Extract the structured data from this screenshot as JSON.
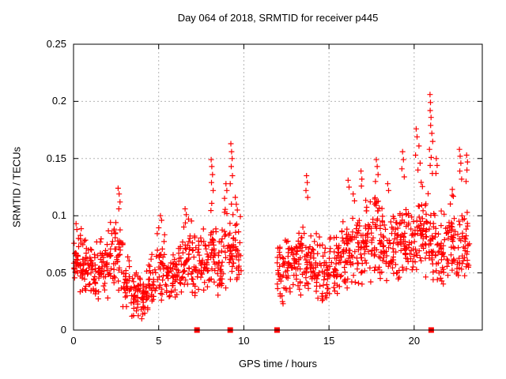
{
  "chart_data": {
    "type": "scatter",
    "title": "Day 064 of 2018, SRMTID for receiver p445",
    "xlabel": "GPS time / hours",
    "ylabel": "SRMTID / TECUs",
    "xlim": [
      0,
      24
    ],
    "ylim": [
      0,
      0.25
    ],
    "xticks": {
      "values": [
        0,
        5,
        10,
        15,
        20
      ],
      "labels": [
        "0",
        "5",
        "10",
        "15",
        "20"
      ]
    },
    "yticks": {
      "values": [
        0,
        0.05,
        0.1,
        0.15,
        0.2,
        0.25
      ],
      "labels": [
        "0",
        "0.05",
        "0.1",
        "0.15",
        "0.2",
        "0.25"
      ]
    },
    "grid": true,
    "legend": "none",
    "colors": {
      "marker": "#ff0000",
      "grid": "#b4b4b4",
      "axis": "#000000",
      "text": "#000000",
      "background": "#ffffff"
    },
    "series": [
      {
        "name": "SRMTID",
        "marker": "plus",
        "marker_size": 7,
        "color": "#ff0000",
        "data_gaps": [
          [
            9.85,
            11.95
          ]
        ],
        "zero_time_markers": [
          7.25,
          9.2,
          11.95,
          21.0
        ],
        "density_bins": [
          [
            0.0,
            0.5,
            36,
            0.028,
            0.095
          ],
          [
            0.5,
            1.0,
            36,
            0.03,
            0.085
          ],
          [
            1.0,
            1.5,
            34,
            0.026,
            0.08
          ],
          [
            1.5,
            2.0,
            34,
            0.028,
            0.088
          ],
          [
            2.0,
            2.5,
            32,
            0.026,
            0.098
          ],
          [
            2.5,
            2.9,
            24,
            0.028,
            0.105
          ],
          [
            2.9,
            3.4,
            32,
            0.018,
            0.068
          ],
          [
            3.4,
            3.9,
            34,
            0.01,
            0.06
          ],
          [
            3.9,
            4.4,
            34,
            0.008,
            0.055
          ],
          [
            4.4,
            4.9,
            30,
            0.016,
            0.07
          ],
          [
            4.9,
            5.45,
            34,
            0.022,
            0.095
          ],
          [
            5.45,
            5.95,
            32,
            0.02,
            0.072
          ],
          [
            5.95,
            6.45,
            32,
            0.026,
            0.085
          ],
          [
            6.45,
            6.95,
            32,
            0.028,
            0.1
          ],
          [
            6.95,
            7.45,
            32,
            0.024,
            0.088
          ],
          [
            7.45,
            7.95,
            32,
            0.032,
            0.095
          ],
          [
            7.95,
            8.4,
            30,
            0.032,
            0.115
          ],
          [
            8.4,
            8.85,
            30,
            0.028,
            0.098
          ],
          [
            8.85,
            9.35,
            32,
            0.032,
            0.125
          ],
          [
            9.35,
            9.85,
            32,
            0.038,
            0.112
          ],
          [
            11.95,
            12.5,
            36,
            0.016,
            0.088
          ],
          [
            12.5,
            13.0,
            34,
            0.026,
            0.092
          ],
          [
            13.0,
            13.5,
            34,
            0.028,
            0.098
          ],
          [
            13.5,
            14.0,
            32,
            0.028,
            0.098
          ],
          [
            14.0,
            14.5,
            32,
            0.026,
            0.09
          ],
          [
            14.5,
            15.0,
            32,
            0.02,
            0.082
          ],
          [
            15.0,
            15.5,
            32,
            0.028,
            0.088
          ],
          [
            15.5,
            16.0,
            34,
            0.032,
            0.102
          ],
          [
            16.0,
            16.5,
            34,
            0.035,
            0.112
          ],
          [
            16.5,
            17.0,
            34,
            0.035,
            0.11
          ],
          [
            17.0,
            17.5,
            34,
            0.038,
            0.118
          ],
          [
            17.5,
            18.0,
            34,
            0.04,
            0.122
          ],
          [
            18.0,
            18.5,
            34,
            0.042,
            0.118
          ],
          [
            18.5,
            19.0,
            34,
            0.038,
            0.112
          ],
          [
            19.0,
            19.5,
            34,
            0.042,
            0.122
          ],
          [
            19.5,
            20.0,
            34,
            0.045,
            0.128
          ],
          [
            20.0,
            20.5,
            34,
            0.046,
            0.132
          ],
          [
            20.5,
            21.0,
            32,
            0.042,
            0.128
          ],
          [
            21.0,
            21.5,
            32,
            0.038,
            0.118
          ],
          [
            21.5,
            22.0,
            32,
            0.038,
            0.112
          ],
          [
            22.0,
            22.5,
            32,
            0.042,
            0.122
          ],
          [
            22.5,
            23.0,
            30,
            0.038,
            0.118
          ],
          [
            23.0,
            23.25,
            16,
            0.048,
            0.112
          ]
        ],
        "outlier_points": [
          [
            0.15,
            0.093
          ],
          [
            0.2,
            0.088
          ],
          [
            2.62,
            0.124
          ],
          [
            2.68,
            0.119
          ],
          [
            2.73,
            0.112
          ],
          [
            2.66,
            0.106
          ],
          [
            5.1,
            0.1
          ],
          [
            5.17,
            0.096
          ],
          [
            6.55,
            0.106
          ],
          [
            6.62,
            0.101
          ],
          [
            6.75,
            0.097
          ],
          [
            8.08,
            0.149
          ],
          [
            8.12,
            0.143
          ],
          [
            8.16,
            0.136
          ],
          [
            8.1,
            0.129
          ],
          [
            8.2,
            0.122
          ],
          [
            8.95,
            0.128
          ],
          [
            9.0,
            0.122
          ],
          [
            9.24,
            0.163
          ],
          [
            9.28,
            0.156
          ],
          [
            9.31,
            0.15
          ],
          [
            9.26,
            0.143
          ],
          [
            9.33,
            0.135
          ],
          [
            9.2,
            0.128
          ],
          [
            9.5,
            0.116
          ],
          [
            9.56,
            0.11
          ],
          [
            9.62,
            0.105
          ],
          [
            13.68,
            0.135
          ],
          [
            13.72,
            0.129
          ],
          [
            13.65,
            0.122
          ],
          [
            13.75,
            0.116
          ],
          [
            16.12,
            0.131
          ],
          [
            16.18,
            0.125
          ],
          [
            16.42,
            0.119
          ],
          [
            16.5,
            0.113
          ],
          [
            16.88,
            0.139
          ],
          [
            16.93,
            0.132
          ],
          [
            16.9,
            0.126
          ],
          [
            17.78,
            0.149
          ],
          [
            17.83,
            0.143
          ],
          [
            17.88,
            0.136
          ],
          [
            17.73,
            0.13
          ],
          [
            18.45,
            0.128
          ],
          [
            18.5,
            0.122
          ],
          [
            19.32,
            0.156
          ],
          [
            19.37,
            0.149
          ],
          [
            19.28,
            0.141
          ],
          [
            19.42,
            0.134
          ],
          [
            20.12,
            0.176
          ],
          [
            20.17,
            0.169
          ],
          [
            20.28,
            0.161
          ],
          [
            20.08,
            0.153
          ],
          [
            20.35,
            0.146
          ],
          [
            20.22,
            0.14
          ],
          [
            20.93,
            0.206
          ],
          [
            20.96,
            0.199
          ],
          [
            20.94,
            0.192
          ],
          [
            20.99,
            0.186
          ],
          [
            20.97,
            0.179
          ],
          [
            21.04,
            0.172
          ],
          [
            21.09,
            0.165
          ],
          [
            20.9,
            0.158
          ],
          [
            21.0,
            0.151
          ],
          [
            20.94,
            0.144
          ],
          [
            21.07,
            0.137
          ],
          [
            21.3,
            0.15
          ],
          [
            21.35,
            0.144
          ],
          [
            21.28,
            0.137
          ],
          [
            22.24,
            0.123
          ],
          [
            22.3,
            0.117
          ],
          [
            22.66,
            0.158
          ],
          [
            22.7,
            0.152
          ],
          [
            22.74,
            0.146
          ],
          [
            22.68,
            0.139
          ],
          [
            22.79,
            0.132
          ],
          [
            23.08,
            0.153
          ],
          [
            23.13,
            0.147
          ],
          [
            23.1,
            0.14
          ],
          [
            23.05,
            0.13
          ]
        ]
      }
    ]
  }
}
